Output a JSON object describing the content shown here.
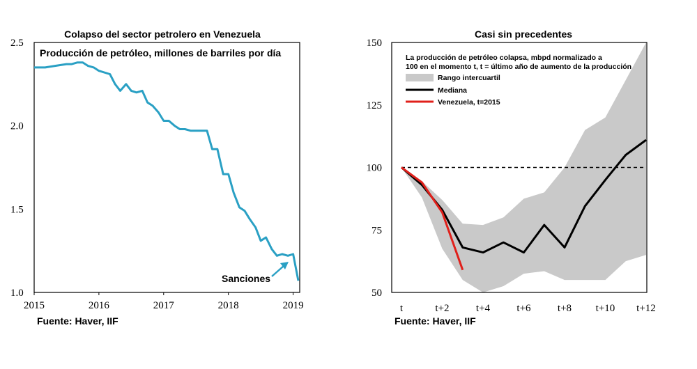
{
  "source_left": "Fuente: Haver, IIF",
  "source_right": "Fuente: Haver, IIF",
  "chart_data": [
    {
      "type": "line",
      "title": "Colapso del sector petrolero en Venezuela",
      "subtitle": "Producción de petróleo, millones de barriles por día",
      "ylim": [
        1.0,
        2.5
      ],
      "yticks": [
        "2.5",
        "2.0",
        "1.5",
        "1.0"
      ],
      "xlim": [
        2015.0,
        2019.08
      ],
      "xticks": [
        "2015",
        "2016",
        "2017",
        "2018",
        "2019"
      ],
      "annotation": "Sanciones",
      "color": "#2aa0c4",
      "series": [
        {
          "x": [
            2015.0,
            2015.17,
            2015.33,
            2015.5,
            2015.58,
            2015.67,
            2015.75,
            2015.83,
            2015.92,
            2016.0,
            2016.17,
            2016.25,
            2016.33,
            2016.42,
            2016.5,
            2016.58,
            2016.67,
            2016.75,
            2016.83,
            2016.92,
            2017.0,
            2017.08,
            2017.17,
            2017.25,
            2017.33,
            2017.42,
            2017.5,
            2017.58,
            2017.67,
            2017.75,
            2017.83,
            2017.92,
            2018.0,
            2018.08,
            2018.17,
            2018.25,
            2018.33,
            2018.42,
            2018.5,
            2018.58,
            2018.67,
            2018.75,
            2018.83,
            2018.92,
            2019.0,
            2019.08
          ],
          "y": [
            2.35,
            2.35,
            2.36,
            2.37,
            2.37,
            2.38,
            2.38,
            2.36,
            2.35,
            2.33,
            2.31,
            2.25,
            2.21,
            2.25,
            2.21,
            2.2,
            2.21,
            2.14,
            2.12,
            2.08,
            2.03,
            2.03,
            2.0,
            1.98,
            1.98,
            1.97,
            1.97,
            1.97,
            1.97,
            1.86,
            1.86,
            1.71,
            1.71,
            1.6,
            1.51,
            1.49,
            1.44,
            1.39,
            1.31,
            1.33,
            1.26,
            1.22,
            1.23,
            1.22,
            1.23,
            1.07
          ]
        }
      ]
    },
    {
      "type": "line",
      "title": "Casi sin precedentes",
      "note_line1": "La producción de petróleo colapsa, mbpd normalizado a",
      "note_line2": "100 en el momento t, t = último año de aumento de la producción",
      "ylim": [
        50,
        150
      ],
      "yticks": [
        "150",
        "125",
        "100",
        "75",
        "50"
      ],
      "xlim": [
        0,
        12
      ],
      "xticks": [
        "t",
        "t+2",
        "t+4",
        "t+6",
        "t+8",
        "t+10",
        "t+12"
      ],
      "reference_line": 100,
      "legend": [
        "Rango intercuartil",
        "Mediana",
        "Venezuela, t=2015"
      ],
      "legend_position": "top-left",
      "colors": {
        "range": "#c9c9c9",
        "median": "#000000",
        "venezuela": "#e0201b"
      },
      "x": [
        0,
        1,
        2,
        3,
        4,
        5,
        6,
        7,
        8,
        9,
        10,
        11,
        12
      ],
      "range_upper": [
        100,
        94.5,
        87,
        77.5,
        77,
        80,
        87.5,
        90,
        100,
        115,
        120,
        135,
        150
      ],
      "range_lower": [
        100,
        88,
        67.5,
        55,
        50,
        52.5,
        57.5,
        58.5,
        55,
        55,
        55,
        62.5,
        65
      ],
      "median": [
        100,
        93,
        83,
        68,
        66,
        70,
        66,
        77,
        68,
        84.5,
        95,
        105,
        111
      ],
      "venezuela": {
        "x": [
          0,
          1,
          2,
          3
        ],
        "y": [
          100,
          94,
          82,
          59
        ]
      }
    }
  ]
}
